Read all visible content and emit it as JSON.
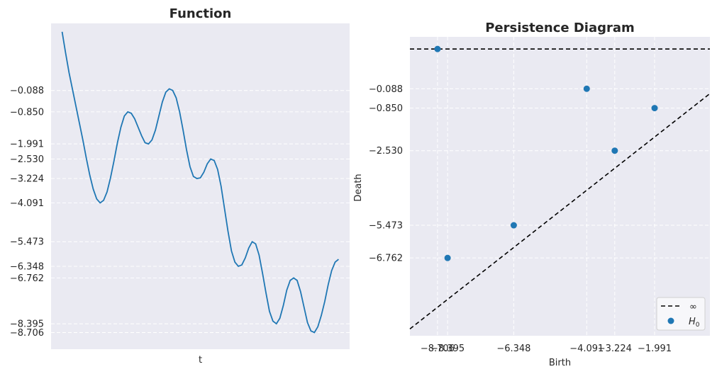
{
  "chart_data": [
    {
      "type": "line",
      "title": "Function",
      "xlabel": "t",
      "ylabel": "",
      "ylim": [
        -9.3,
        2.3
      ],
      "xlim": [
        -0.04,
        1.04
      ],
      "grid": true,
      "yticks": [
        -0.088,
        -0.85,
        -1.991,
        -2.53,
        -3.224,
        -4.091,
        -5.473,
        -6.348,
        -6.762,
        -8.395,
        -8.706
      ],
      "ytick_labels": [
        "−0.088",
        "−0.850",
        "−1.991",
        "−2.530",
        "−3.224",
        "−4.091",
        "−5.473",
        "−6.348",
        "−6.762",
        "−8.395",
        "−8.706"
      ],
      "series": [
        {
          "color": "#1f77b4",
          "x": [
            0.0,
            0.0125,
            0.025,
            0.0375,
            0.05,
            0.0625,
            0.075,
            0.0875,
            0.1,
            0.1125,
            0.125,
            0.1375,
            0.15,
            0.1625,
            0.175,
            0.1875,
            0.2,
            0.2125,
            0.225,
            0.2375,
            0.25,
            0.2625,
            0.275,
            0.2875,
            0.3,
            0.3125,
            0.325,
            0.3375,
            0.35,
            0.3625,
            0.375,
            0.3875,
            0.4,
            0.4125,
            0.425,
            0.4375,
            0.45,
            0.4625,
            0.475,
            0.4875,
            0.5,
            0.5125,
            0.525,
            0.5375,
            0.55,
            0.5625,
            0.575,
            0.5875,
            0.6,
            0.6125,
            0.625,
            0.6375,
            0.65,
            0.6625,
            0.675,
            0.6875,
            0.7,
            0.7125,
            0.725,
            0.7375,
            0.75,
            0.7625,
            0.775,
            0.7875,
            0.8,
            0.8125,
            0.825,
            0.8375,
            0.85,
            0.8625,
            0.875,
            0.8875,
            0.9,
            0.9125,
            0.925,
            0.9375,
            0.95,
            0.9625,
            0.975,
            0.9875,
            1.0
          ],
          "y": [
            2.0,
            1.25,
            0.55,
            -0.05,
            -0.65,
            -1.25,
            -1.85,
            -2.5,
            -3.1,
            -3.6,
            -3.95,
            -4.091,
            -4.0,
            -3.7,
            -3.2,
            -2.6,
            -1.95,
            -1.4,
            -1.0,
            -0.85,
            -0.9,
            -1.1,
            -1.4,
            -1.7,
            -1.95,
            -1.991,
            -1.85,
            -1.5,
            -1.0,
            -0.5,
            -0.15,
            -0.03,
            -0.088,
            -0.35,
            -0.85,
            -1.5,
            -2.2,
            -2.8,
            -3.15,
            -3.224,
            -3.2,
            -3.0,
            -2.7,
            -2.53,
            -2.58,
            -2.9,
            -3.5,
            -4.3,
            -5.1,
            -5.8,
            -6.2,
            -6.348,
            -6.3,
            -6.05,
            -5.7,
            -5.473,
            -5.55,
            -5.95,
            -6.6,
            -7.3,
            -7.95,
            -8.3,
            -8.395,
            -8.2,
            -7.75,
            -7.2,
            -6.85,
            -6.762,
            -6.85,
            -7.25,
            -7.8,
            -8.35,
            -8.65,
            -8.706,
            -8.5,
            -8.1,
            -7.6,
            -7.0,
            -6.5,
            -6.2,
            -6.1
          ]
        }
      ]
    },
    {
      "type": "scatter",
      "title": "Persistence Diagram",
      "xlabel": "Birth",
      "ylabel": "Death",
      "xlim": [
        -9.56,
        -0.28
      ],
      "ylim": [
        -9.83,
        1.96
      ],
      "grid": true,
      "xticks": [
        -8.706,
        -8.395,
        -6.348,
        -4.091,
        -3.224,
        -1.991
      ],
      "xtick_labels": [
        "−8.706",
        "−8.395",
        "−6.348",
        "−4.091",
        "−3.224",
        "−1.991"
      ],
      "yticks": [
        -0.088,
        -0.85,
        -2.53,
        -5.473,
        -6.762
      ],
      "ytick_labels": [
        "−0.088",
        "−0.850",
        "−2.530",
        "−5.473",
        "−6.762"
      ],
      "legend_placement": "lower-right",
      "legend": [
        {
          "label": "∞",
          "style": "dashed-line",
          "color": "#000000"
        },
        {
          "label": "H",
          "subscript": "0",
          "style": "marker",
          "color": "#1f77b4"
        }
      ],
      "infinity_level": 1.48,
      "points": [
        {
          "birth": -8.706,
          "death": 1.48
        },
        {
          "birth": -8.395,
          "death": -6.762
        },
        {
          "birth": -6.348,
          "death": -5.473
        },
        {
          "birth": -4.091,
          "death": -0.088
        },
        {
          "birth": -3.224,
          "death": -2.53
        },
        {
          "birth": -1.991,
          "death": -0.85
        }
      ],
      "marker_color": "#1f77b4"
    }
  ]
}
